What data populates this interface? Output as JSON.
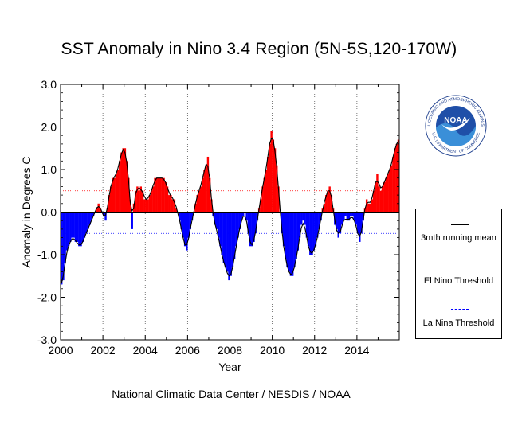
{
  "title": "SST Anomaly in Nino 3.4 Region (5N-5S,120-170W)",
  "footer": "National Climatic Data Center / NESDIS / NOAA",
  "logo": {
    "center_text": "NOAA",
    "ring_text": "NATIONAL OCEANIC AND ATMOSPHERIC ADMINISTRATION",
    "bottom_text": "U.S. DEPARTMENT OF COMMERCE"
  },
  "legend": {
    "items": [
      {
        "label": "3mth running mean",
        "color": "#000000",
        "style": "solid"
      },
      {
        "label": "El Nino Threshold",
        "color": "#ff0000",
        "style": "dashed"
      },
      {
        "label": "La Nina Threshold",
        "color": "#0000ff",
        "style": "dashed"
      }
    ]
  },
  "chart_data": {
    "type": "bar",
    "title": "SST Anomaly in Nino 3.4 Region (5N-5S,120-170W)",
    "xlabel": "Year",
    "ylabel": "Anomaly in Degrees C",
    "xlim": [
      2000,
      2016
    ],
    "ylim": [
      -3.0,
      3.0
    ],
    "yticks": [
      "3.0",
      "2.0",
      "1.0",
      "0.0",
      "-1.0",
      "-2.0",
      "-3.0"
    ],
    "xticks": [
      "2000",
      "2002",
      "2004",
      "2006",
      "2008",
      "2010",
      "2012",
      "2014"
    ],
    "thresholds": {
      "el_nino": 0.5,
      "la_nina": -0.5
    },
    "positive_color": "#ff0000",
    "negative_color": "#0000ff",
    "grid": "vertical dotted at even years",
    "legend_position": "right",
    "start_year": 2000,
    "values": [
      -1.7,
      -1.6,
      -1.2,
      -0.9,
      -0.8,
      -0.7,
      -0.6,
      -0.6,
      -0.7,
      -0.7,
      -0.8,
      -0.8,
      -0.7,
      -0.6,
      -0.5,
      -0.4,
      -0.3,
      -0.2,
      -0.1,
      0.0,
      0.1,
      0.2,
      0.1,
      0.0,
      -0.1,
      -0.2,
      0.1,
      0.4,
      0.6,
      0.8,
      0.8,
      0.9,
      1.0,
      1.2,
      1.4,
      1.5,
      1.5,
      1.2,
      0.8,
      0.3,
      -0.4,
      0.2,
      0.5,
      0.6,
      0.5,
      0.6,
      0.5,
      0.3,
      0.3,
      0.3,
      0.4,
      0.5,
      0.6,
      0.8,
      0.8,
      0.8,
      0.8,
      0.8,
      0.8,
      0.7,
      0.6,
      0.4,
      0.4,
      0.3,
      0.3,
      0.1,
      0.0,
      -0.2,
      -0.4,
      -0.6,
      -0.8,
      -0.9,
      -0.6,
      -0.4,
      -0.2,
      0.0,
      0.2,
      0.4,
      0.5,
      0.6,
      0.8,
      1.0,
      1.1,
      1.3,
      0.8,
      0.3,
      -0.1,
      -0.3,
      -0.4,
      -0.6,
      -0.8,
      -1.0,
      -1.2,
      -1.3,
      -1.4,
      -1.6,
      -1.5,
      -1.3,
      -1.1,
      -0.8,
      -0.6,
      -0.4,
      -0.2,
      -0.1,
      0.0,
      -0.2,
      -0.5,
      -0.8,
      -0.8,
      -0.7,
      -0.5,
      -0.2,
      0.1,
      0.3,
      0.6,
      0.8,
      1.0,
      1.3,
      1.6,
      1.9,
      1.7,
      1.5,
      1.1,
      0.6,
      0.0,
      -0.5,
      -0.8,
      -1.1,
      -1.3,
      -1.4,
      -1.5,
      -1.5,
      -1.3,
      -1.1,
      -0.9,
      -0.6,
      -0.3,
      -0.2,
      -0.3,
      -0.6,
      -0.8,
      -1.0,
      -1.0,
      -0.9,
      -0.8,
      -0.6,
      -0.4,
      -0.2,
      0.1,
      0.2,
      0.4,
      0.5,
      0.6,
      0.4,
      0.1,
      -0.3,
      -0.4,
      -0.6,
      -0.5,
      -0.3,
      -0.2,
      -0.1,
      -0.2,
      -0.2,
      -0.1,
      -0.1,
      -0.2,
      -0.3,
      -0.5,
      -0.7,
      -0.5,
      -0.2,
      0.1,
      0.3,
      0.2,
      0.2,
      0.3,
      0.5,
      0.7,
      0.9,
      0.6,
      0.5,
      0.6,
      0.7,
      0.8,
      0.9,
      1.0,
      1.1,
      1.3,
      1.5,
      1.6,
      1.7
    ],
    "running_mean": [
      -1.67,
      -1.5,
      -1.23,
      -0.97,
      -0.8,
      -0.7,
      -0.63,
      -0.63,
      -0.67,
      -0.73,
      -0.77,
      -0.77,
      -0.7,
      -0.6,
      -0.5,
      -0.4,
      -0.3,
      -0.2,
      -0.1,
      0.0,
      0.1,
      0.13,
      0.1,
      0.0,
      -0.1,
      -0.07,
      0.1,
      0.37,
      0.6,
      0.73,
      0.83,
      0.9,
      1.03,
      1.2,
      1.37,
      1.47,
      1.4,
      1.17,
      0.77,
      0.23,
      0.03,
      0.1,
      0.43,
      0.53,
      0.57,
      0.53,
      0.47,
      0.37,
      0.3,
      0.33,
      0.4,
      0.5,
      0.63,
      0.73,
      0.8,
      0.8,
      0.8,
      0.8,
      0.77,
      0.7,
      0.57,
      0.47,
      0.37,
      0.33,
      0.23,
      0.13,
      -0.03,
      -0.2,
      -0.4,
      -0.6,
      -0.77,
      -0.77,
      -0.63,
      -0.4,
      -0.2,
      0.0,
      0.2,
      0.37,
      0.5,
      0.63,
      0.8,
      0.97,
      1.13,
      1.07,
      0.8,
      0.33,
      -0.03,
      -0.27,
      -0.43,
      -0.6,
      -0.8,
      -1.0,
      -1.17,
      -1.3,
      -1.43,
      -1.5,
      -1.47,
      -1.3,
      -1.07,
      -0.83,
      -0.6,
      -0.4,
      -0.23,
      -0.1,
      -0.1,
      -0.23,
      -0.5,
      -0.7,
      -0.77,
      -0.67,
      -0.47,
      -0.2,
      0.07,
      0.33,
      0.57,
      0.8,
      1.03,
      1.3,
      1.6,
      1.73,
      1.7,
      1.43,
      1.07,
      0.57,
      0.03,
      -0.43,
      -0.8,
      -1.07,
      -1.27,
      -1.4,
      -1.47,
      -1.43,
      -1.3,
      -1.1,
      -0.87,
      -0.6,
      -0.37,
      -0.27,
      -0.37,
      -0.57,
      -0.8,
      -0.93,
      -0.97,
      -0.9,
      -0.77,
      -0.6,
      -0.4,
      -0.17,
      0.03,
      0.23,
      0.37,
      0.5,
      0.5,
      0.37,
      0.07,
      -0.2,
      -0.43,
      -0.5,
      -0.47,
      -0.33,
      -0.2,
      -0.17,
      -0.17,
      -0.17,
      -0.13,
      -0.13,
      -0.2,
      -0.33,
      -0.5,
      -0.57,
      -0.47,
      -0.2,
      0.07,
      0.2,
      0.23,
      0.23,
      0.33,
      0.5,
      0.7,
      0.73,
      0.67,
      0.57,
      0.6,
      0.7,
      0.8,
      0.9,
      1.0,
      1.13,
      1.3,
      1.47,
      1.6,
      1.67
    ]
  }
}
